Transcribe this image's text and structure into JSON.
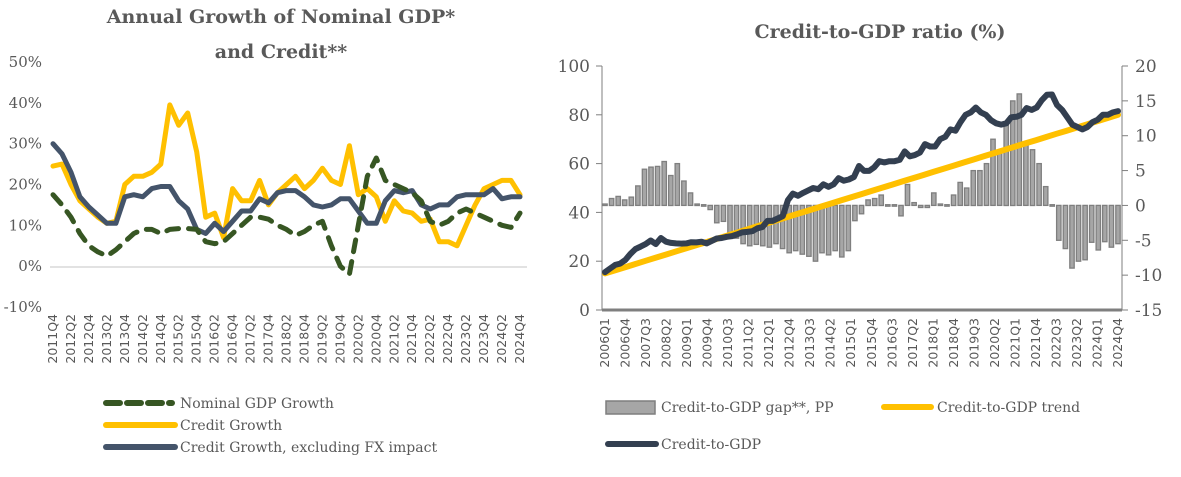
{
  "chart_data": [
    {
      "type": "line",
      "title": "Annual Growth of Nominal GDP* and Credit**",
      "title_lines": [
        "Annual Growth of Nominal GDP*",
        "and Credit**"
      ],
      "xlabel": "",
      "ylabel": "",
      "ylim": [
        -10,
        50
      ],
      "yticks": [
        50,
        40,
        30,
        20,
        10,
        0,
        -10
      ],
      "ytick_labels": [
        "50%",
        "40%",
        "30%",
        "20%",
        "10%",
        "0%",
        "-10%"
      ],
      "x": [
        "2011Q4",
        "2012Q1",
        "2012Q2",
        "2012Q3",
        "2012Q4",
        "2013Q1",
        "2013Q2",
        "2013Q3",
        "2013Q4",
        "2014Q1",
        "2014Q2",
        "2014Q3",
        "2014Q4",
        "2015Q1",
        "2015Q2",
        "2015Q3",
        "2015Q4",
        "2016Q1",
        "2016Q2",
        "2016Q3",
        "2016Q4",
        "2017Q1",
        "2017Q2",
        "2017Q3",
        "2017Q4",
        "2018Q1",
        "2018Q2",
        "2018Q3",
        "2018Q4",
        "2019Q1",
        "2019Q2",
        "2019Q3",
        "2019Q4",
        "2020Q1",
        "2020Q2",
        "2020Q3",
        "2020Q4",
        "2021Q1",
        "2021Q2",
        "2021Q3",
        "2021Q4",
        "2022Q1",
        "2022Q2",
        "2022Q3",
        "2022Q4",
        "2023Q1",
        "2023Q2",
        "2023Q3",
        "2023Q4",
        "2024Q1",
        "2024Q2",
        "2024Q3",
        "2024Q4"
      ],
      "xtick_labels": [
        "2011Q4",
        "2012Q2",
        "2012Q4",
        "2013Q2",
        "2013Q4",
        "2014Q2",
        "2014Q4",
        "2015Q2",
        "2015Q4",
        "2016Q2",
        "2016Q4",
        "2017Q2",
        "2017Q4",
        "2018Q2",
        "2018Q4",
        "2019Q2",
        "2019Q4",
        "2020Q2",
        "2020Q4",
        "2021Q2",
        "2021Q4",
        "2022Q2",
        "2022Q4",
        "2023Q2",
        "2023Q4",
        "2024Q2",
        "2024Q4"
      ],
      "series": [
        {
          "name": "Nominal GDP Growth",
          "style": "dashed",
          "color": "#375623",
          "values": [
            17.5,
            15,
            12,
            8,
            5,
            3.5,
            2.5,
            4,
            6,
            8,
            9,
            9,
            8,
            9,
            9.2,
            9.2,
            9,
            6,
            5.5,
            6,
            8,
            10,
            12,
            12,
            11.5,
            10,
            9,
            7.5,
            8.5,
            10,
            11,
            5,
            0,
            -2,
            10,
            22,
            26.5,
            21,
            20,
            19,
            18,
            16,
            11,
            10,
            11,
            13,
            14,
            13,
            12,
            11,
            10,
            9.5,
            13
          ]
        },
        {
          "name": "Credit Growth",
          "style": "solid",
          "color": "#FFC000",
          "values": [
            24.5,
            25,
            20,
            16,
            14,
            12,
            10.5,
            11,
            20,
            22,
            22,
            23,
            25,
            39.5,
            34.5,
            37.5,
            28,
            12,
            13,
            7,
            19,
            16,
            16,
            21,
            15,
            18,
            20,
            22,
            19,
            21,
            24,
            21,
            20,
            29.5,
            17.5,
            19,
            17,
            11,
            16,
            13.5,
            13,
            11,
            11.5,
            6,
            6,
            5,
            10,
            15,
            19,
            20,
            21,
            21,
            17.5
          ]
        },
        {
          "name": "Credit Growth, excluding FX impact",
          "style": "solid",
          "color": "#44546A",
          "values": [
            30,
            27.5,
            23,
            17,
            14.5,
            12.5,
            10.5,
            10.5,
            17,
            17.5,
            17,
            19,
            19.5,
            19.5,
            16,
            14,
            9,
            8,
            10.5,
            8.5,
            11,
            13.5,
            13.5,
            16.5,
            15.5,
            18,
            18.5,
            18.5,
            17,
            15,
            14.5,
            15,
            16.5,
            16.5,
            13.5,
            10.5,
            10.5,
            16,
            18.5,
            18,
            18.5,
            15,
            14,
            15,
            15,
            17,
            17.5,
            17.5,
            17.5,
            19,
            16.5,
            17,
            17
          ]
        }
      ],
      "grid": false,
      "legend": "bottom"
    },
    {
      "type": "bar+line",
      "title": "Credit-to-GDP ratio (%)",
      "xlabel": "",
      "ylim_left": [
        0,
        100
      ],
      "yticks_left": [
        0,
        20,
        40,
        60,
        80,
        100
      ],
      "ylim_right": [
        -15,
        20
      ],
      "yticks_right": [
        20,
        15,
        10,
        5,
        0,
        -5,
        -10,
        -15
      ],
      "x_start": "2006Q1",
      "x_end": "2024Q4",
      "xtick_labels": [
        "2006Q1",
        "2006Q4",
        "2007Q3",
        "2008Q2",
        "2009Q1",
        "2009Q4",
        "2010Q3",
        "2011Q2",
        "2012Q1",
        "2012Q4",
        "2013Q3",
        "2014Q2",
        "2015Q1",
        "2015Q4",
        "2016Q3",
        "2017Q2",
        "2018Q1",
        "2018Q4",
        "2019Q3",
        "2020Q2",
        "2021Q1",
        "2021Q4",
        "2022Q3",
        "2023Q2",
        "2024Q1",
        "2024Q4"
      ],
      "series": [
        {
          "name": "Credit-to-GDP gap**, PP",
          "type": "bar",
          "axis": "right",
          "color": "#A6A6A6",
          "edge": "#7F7F7F",
          "values": [
            0.2,
            1,
            1.3,
            0.8,
            1.2,
            2.8,
            5.2,
            5.5,
            5.6,
            6.3,
            4.3,
            6,
            3.5,
            1.8,
            0.2,
            0.1,
            -0.6,
            -2.5,
            -2.3,
            -4.5,
            -4.7,
            -5.5,
            -5.8,
            -5.6,
            -5.8,
            -6,
            -5.5,
            -6.2,
            -6.8,
            -6.5,
            -7,
            -7.3,
            -8,
            -6.8,
            -7.1,
            -6.5,
            -7.4,
            -6.5,
            -2.2,
            -1.2,
            0.8,
            1,
            1.5,
            0.1,
            0.1,
            -1.5,
            3,
            0.4,
            -0.3,
            -0.3,
            1.8,
            0.2,
            0.1,
            1.5,
            3.3,
            2.5,
            5,
            5,
            6,
            9.5,
            7.5,
            11.5,
            15,
            16,
            9,
            8,
            6,
            2.7,
            0.1,
            -5,
            -6.2,
            -9,
            -8,
            -7.8,
            -5.3,
            -6.4,
            -5.2,
            -6,
            -5.5
          ]
        },
        {
          "name": "Credit-to-GDP trend",
          "type": "line",
          "axis": "left",
          "color": "#FFC000",
          "values": [
            15,
            16.3,
            17.6,
            18.9,
            20.2,
            21.5,
            22.8,
            24.1,
            25.4,
            26.7,
            28,
            29.3,
            30.6,
            31.9,
            33.2,
            34.5,
            35.8,
            37.1,
            38.4,
            39.7,
            41,
            42.3,
            43.6,
            44.9,
            46.2,
            47.5,
            48.8,
            50.1,
            51.4,
            52.7,
            54,
            55.3,
            56.6,
            57.9,
            59.2,
            60.5,
            61.8,
            63.1,
            64.4,
            65.7,
            67,
            68.3,
            69.6,
            70.9,
            72.2,
            73.5,
            74.8,
            76.1,
            77.4,
            78.7,
            80
          ]
        },
        {
          "name": "Credit-to-GDP",
          "type": "line",
          "axis": "left",
          "color": "#333F50",
          "values": [
            15.5,
            17,
            18.5,
            19,
            20.5,
            23,
            25,
            26,
            27,
            28.5,
            27,
            29.5,
            28,
            27.5,
            27.3,
            27.2,
            27.3,
            27.8,
            27.7,
            28,
            27.3,
            28.3,
            29.3,
            29.5,
            30,
            30.3,
            31,
            31.8,
            32,
            32.3,
            33.5,
            34,
            36.5,
            36.5,
            37.5,
            38.5,
            45,
            47.7,
            46.8,
            48,
            49,
            50,
            49.5,
            51.5,
            50.5,
            51.5,
            54,
            53,
            53.5,
            54.5,
            59,
            57,
            57,
            58.5,
            61,
            60.5,
            61,
            61,
            61.5,
            65,
            63,
            63.5,
            64.5,
            68,
            67,
            67,
            70,
            71,
            74,
            73.5,
            77,
            80,
            81,
            83,
            81,
            80,
            77.8,
            76.5,
            76,
            76.5,
            79,
            79.2,
            80,
            82.8,
            82,
            83,
            86,
            88.2,
            88.3,
            84,
            82,
            79,
            76,
            75,
            74,
            75,
            77,
            78,
            80,
            80,
            81,
            81.5
          ]
        }
      ],
      "grid": false,
      "legend": "bottom"
    }
  ],
  "legend1": {
    "items": [
      "Nominal GDP Growth",
      "Credit Growth",
      "Credit Growth, excluding FX impact"
    ]
  },
  "legend2": {
    "items": [
      "Credit-to-GDP gap**, PP",
      "Credit-to-GDP trend",
      "Credit-to-GDP"
    ]
  }
}
